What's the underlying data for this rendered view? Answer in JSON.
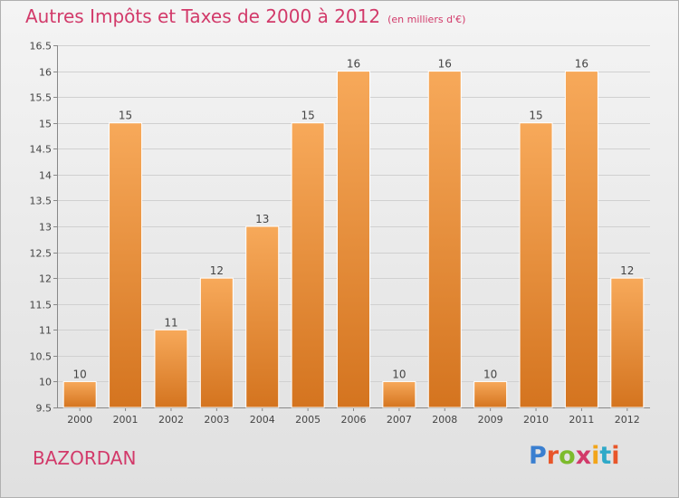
{
  "header": {
    "title": "Autres Impôts et Taxes de 2000 à 2012",
    "subtitle": "(en milliers d'€)"
  },
  "footer": {
    "place": "BAZORDAN",
    "logo": "Proxiti"
  },
  "colors": {
    "title": "#d23a6a",
    "bar_top": "#f7a95a",
    "bar_bottom": "#d4741f",
    "logo_letters": [
      "#3a7fd0",
      "#e8562a",
      "#7dbb2c",
      "#d23a6a",
      "#f2a51a",
      "#2fa9c8",
      "#e8562a"
    ]
  },
  "chart_data": {
    "type": "bar",
    "categories": [
      "2000",
      "2001",
      "2002",
      "2003",
      "2004",
      "2005",
      "2006",
      "2007",
      "2008",
      "2009",
      "2010",
      "2011",
      "2012"
    ],
    "values": [
      10,
      15,
      11,
      12,
      13,
      15,
      16,
      10,
      16,
      10,
      15,
      16,
      12
    ],
    "data_labels": [
      "10",
      "15",
      "11",
      "12",
      "13",
      "15",
      "16",
      "10",
      "16",
      "10",
      "15",
      "16",
      "12"
    ],
    "ylim": [
      9.5,
      16.5
    ],
    "yticks": [
      "9.5",
      "10",
      "10.5",
      "11",
      "11.5",
      "12",
      "12.5",
      "13",
      "13.5",
      "14",
      "14.5",
      "15",
      "15.5",
      "16",
      "16.5"
    ],
    "grid": true,
    "xlabel": "",
    "ylabel": ""
  }
}
